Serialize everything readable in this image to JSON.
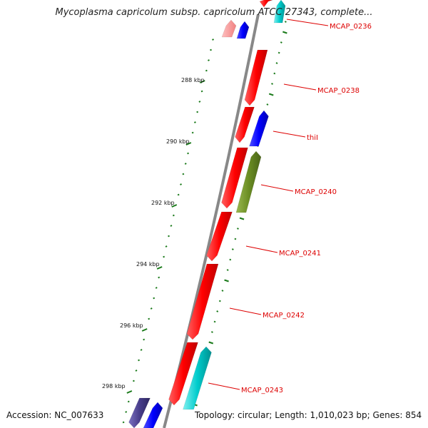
{
  "title": "Mycoplasma capricolum subsp. capricolum ATCC 27343, complete...",
  "accession": "Accession: NC_007633",
  "topology": "Topology: circular; Length: 1,010,023 bp; Genes: 854",
  "tick_labels": [
    "288 kbp",
    "290 kbp",
    "292 kbp",
    "294 kbp",
    "296 kbp",
    "298 kbp"
  ],
  "gene_labels": [
    "MCAP_0236",
    "MCAP_0238",
    "thiI",
    "MCAP_0240",
    "MCAP_0241",
    "MCAP_0242",
    "MCAP_0243"
  ],
  "colors": {
    "gene_red": "#ff0000",
    "gene_pink": "#f08080",
    "gene_blue": "#0000ff",
    "gene_cyan": "#00cccc",
    "gene_olive": "#6b8e23",
    "gene_purple": "#483d8b",
    "label_red": "#dd0000",
    "tick_green": "#1a7a1a",
    "backbone": "#888888"
  }
}
